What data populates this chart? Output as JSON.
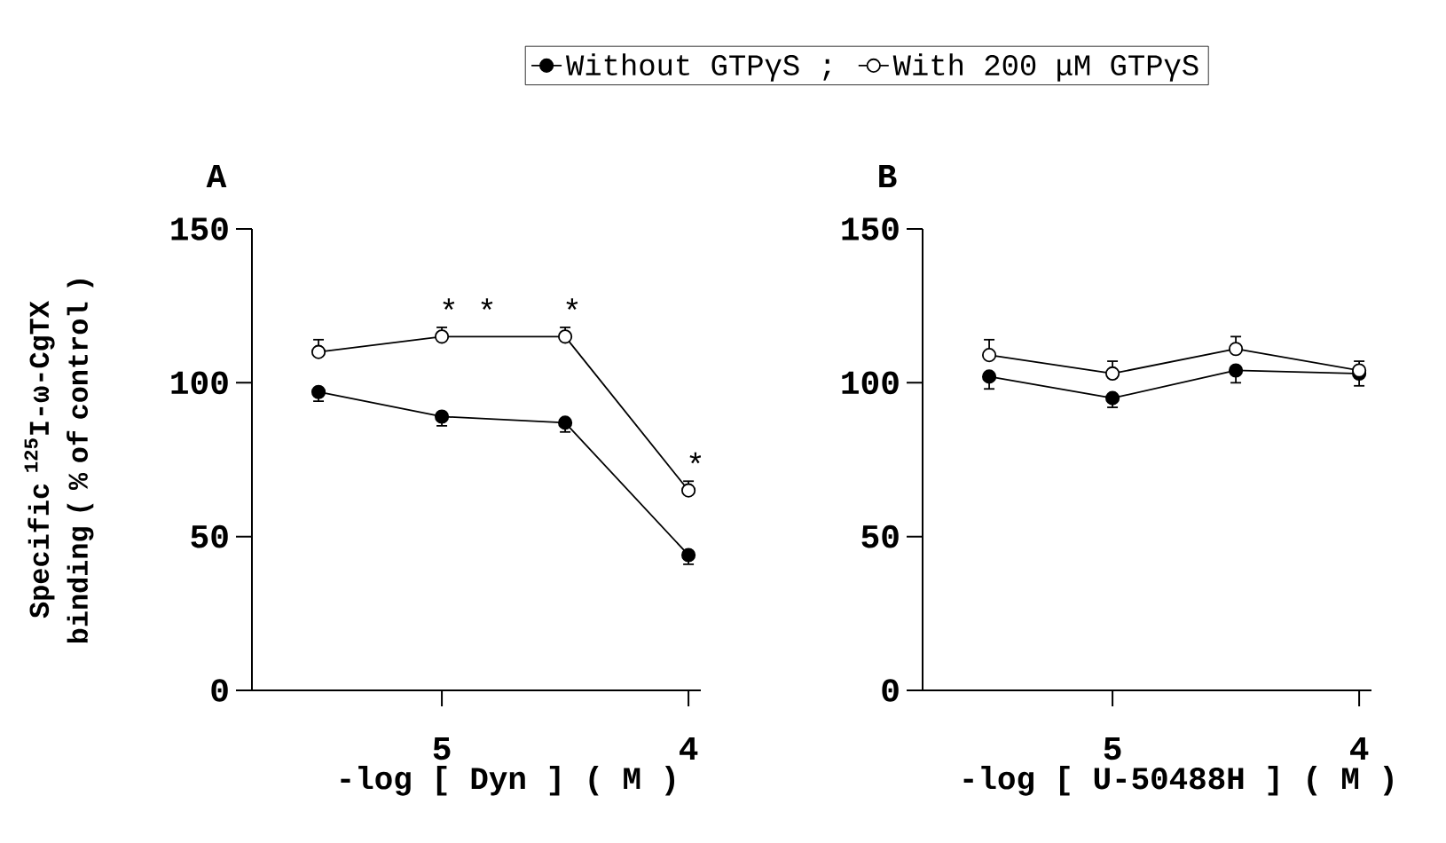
{
  "chart_data": [
    {
      "type": "line",
      "title": "A",
      "xlabel": "-log [ Dyn ] ( M )",
      "ylabel": "Specific $^{125}$I-ω-CgTX binding ( % of control )",
      "x": [
        5.5,
        5,
        4.5,
        4
      ],
      "xlim": [
        5.77,
        3.95
      ],
      "xticks": [
        5,
        4
      ],
      "ylim": [
        0,
        150
      ],
      "yticks": [
        0,
        50,
        100,
        150
      ],
      "legend": "top",
      "marker": "circle",
      "series": [
        {
          "name": "Without GTPγS ;",
          "color": "#000000",
          "values": [
            97,
            89,
            87,
            44
          ],
          "errors": [
            [
              94,
              97
            ],
            [
              86,
              89
            ],
            [
              84,
              87
            ],
            [
              41,
              44
            ]
          ]
        },
        {
          "name": "With 200 μM GTPγS",
          "color": "#ffffff",
          "values": [
            110,
            115,
            115,
            65
          ],
          "errors": [
            [
              110,
              114
            ],
            [
              115,
              118
            ],
            [
              115,
              118
            ],
            [
              65,
              68
            ]
          ]
        }
      ],
      "annotations": [
        {
          "text": "* *",
          "x": 5,
          "y": 115
        },
        {
          "text": "*",
          "x": 4.5,
          "y": 115
        },
        {
          "text": "*",
          "x": 4,
          "y": 65
        }
      ]
    },
    {
      "type": "line",
      "title": "B",
      "xlabel": "-log [ U-50488H ] ( M )",
      "x": [
        5.5,
        5,
        4.5,
        4
      ],
      "xlim": [
        5.77,
        3.95
      ],
      "xticks": [
        5,
        4
      ],
      "ylim": [
        0,
        150
      ],
      "yticks": [
        0,
        50,
        100,
        150
      ],
      "marker": "circle",
      "series": [
        {
          "color": "#000000",
          "values": [
            102,
            95,
            104,
            103
          ],
          "errors": [
            [
              98,
              102
            ],
            [
              92,
              95
            ],
            [
              100,
              104
            ],
            [
              99,
              103
            ]
          ]
        },
        {
          "color": "#ffffff",
          "values": [
            109,
            103,
            111,
            104
          ],
          "errors": [
            [
              109,
              114
            ],
            [
              103,
              107
            ],
            [
              111,
              115
            ],
            [
              104,
              107
            ]
          ]
        }
      ]
    }
  ]
}
